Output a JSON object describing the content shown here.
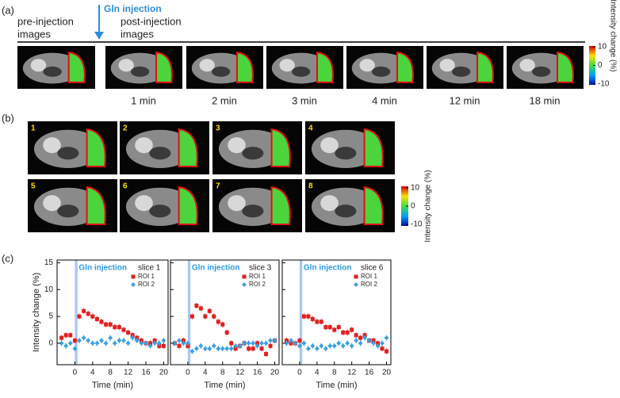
{
  "panel_labels": [
    "(a)",
    "(b)",
    "(c)"
  ],
  "panel_a": {
    "pre_label": [
      "pre-injection",
      "images"
    ],
    "injection_label": "Gln injection",
    "post_label": [
      "post-injection",
      "images"
    ],
    "times": [
      "1 min",
      "2 min",
      "3 min",
      "4 min",
      "12 min",
      "18 min"
    ],
    "colorbar": {
      "lim": [
        -10,
        10
      ],
      "ticks": [
        10,
        0,
        -10
      ],
      "label": "Intensity change (%)"
    }
  },
  "panel_b": {
    "slices": [
      "1",
      "2",
      "3",
      "4",
      "5",
      "6",
      "7",
      "8"
    ],
    "colorbar": {
      "lim": [
        -10,
        10
      ],
      "ticks": [
        10,
        0,
        -10
      ],
      "label": "Intensity change (%)"
    }
  },
  "chart_data": [
    {
      "type": "scatter",
      "annotation": "Gln injection",
      "legend_title": "slice 1",
      "x_label": "Time (min)",
      "y_label": "Intensity change (%)",
      "xlim": [
        -4,
        21
      ],
      "ylim": [
        -4,
        15.5
      ],
      "xticks": [
        0,
        4,
        8,
        12,
        16,
        20
      ],
      "yticks": [
        0,
        5,
        10,
        15
      ],
      "x": [
        -3,
        -2,
        -1,
        0,
        1,
        2,
        3,
        4,
        5,
        6,
        7,
        8,
        9,
        10,
        11,
        12,
        13,
        14,
        15,
        16,
        17,
        18,
        19,
        20
      ],
      "series": [
        {
          "name": "ROI 1",
          "color": "#e02020",
          "values": [
            1,
            1.5,
            1.5,
            0.5,
            5,
            6,
            5.5,
            5,
            4.5,
            4,
            3.5,
            3.5,
            3,
            3,
            2.5,
            2,
            1.5,
            1,
            0.5,
            0,
            0,
            0.5,
            -0.5,
            -0.5
          ]
        },
        {
          "name": "ROI 2",
          "color": "#3aa0e0",
          "values": [
            0,
            -0.5,
            0,
            -1,
            0.5,
            1,
            0.5,
            0,
            0,
            0.5,
            0,
            1,
            0,
            0.5,
            0.5,
            0,
            1,
            0.5,
            0,
            0,
            -0.5,
            0,
            0,
            0.5
          ]
        }
      ]
    },
    {
      "type": "scatter",
      "annotation": "Gln injection",
      "legend_title": "slice 3",
      "x_label": "Time (min)",
      "xlim": [
        -4,
        21
      ],
      "ylim": [
        -4,
        15.5
      ],
      "xticks": [
        0,
        4,
        8,
        12,
        16,
        20
      ],
      "yticks": [
        0,
        5,
        10,
        15
      ],
      "x": [
        -3,
        -2,
        -1,
        0,
        1,
        2,
        3,
        4,
        5,
        6,
        7,
        8,
        9,
        10,
        11,
        12,
        13,
        14,
        15,
        16,
        17,
        18,
        19,
        20
      ],
      "series": [
        {
          "name": "ROI 1",
          "color": "#e02020",
          "values": [
            0,
            -0.5,
            0.5,
            -0.5,
            5,
            7,
            6.5,
            5,
            6,
            5,
            4,
            3.5,
            2,
            0,
            -1,
            -0.5,
            0,
            -1,
            -1,
            0,
            -1,
            -2,
            -0.5,
            0.5
          ]
        },
        {
          "name": "ROI 2",
          "color": "#3aa0e0",
          "values": [
            0,
            0.5,
            0,
            0,
            -1.5,
            -1,
            -0.5,
            -1,
            -1,
            -0.5,
            -1,
            -1,
            -1,
            -1,
            -0.5,
            -0.5,
            0,
            0,
            0,
            -0.5,
            0,
            0,
            0.5,
            0.5
          ]
        }
      ]
    },
    {
      "type": "scatter",
      "annotation": "Gln injection",
      "legend_title": "slice 6",
      "x_label": "Time (min)",
      "xlim": [
        -4,
        21
      ],
      "ylim": [
        -4,
        15.5
      ],
      "xticks": [
        0,
        4,
        8,
        12,
        16,
        20
      ],
      "yticks": [
        0,
        5,
        10,
        15
      ],
      "x": [
        -3,
        -2,
        -1,
        0,
        1,
        2,
        3,
        4,
        5,
        6,
        7,
        8,
        9,
        10,
        11,
        12,
        13,
        14,
        15,
        16,
        17,
        18,
        19,
        20
      ],
      "series": [
        {
          "name": "ROI 1",
          "color": "#e02020",
          "values": [
            0.5,
            0,
            0,
            0.5,
            5,
            5,
            4.5,
            4,
            4,
            3,
            3,
            2.5,
            3,
            2,
            2,
            2.5,
            1.5,
            1,
            1.5,
            0.5,
            0.5,
            0,
            -1,
            -1.5
          ]
        },
        {
          "name": "ROI 2",
          "color": "#3aa0e0",
          "values": [
            0,
            0.5,
            0,
            -0.5,
            0,
            -1,
            -0.5,
            -1,
            -0.5,
            -1,
            -0.5,
            -0.5,
            0,
            -0.5,
            0,
            -0.5,
            0.5,
            0,
            1,
            0.5,
            0,
            -0.5,
            0,
            1
          ]
        }
      ]
    }
  ]
}
